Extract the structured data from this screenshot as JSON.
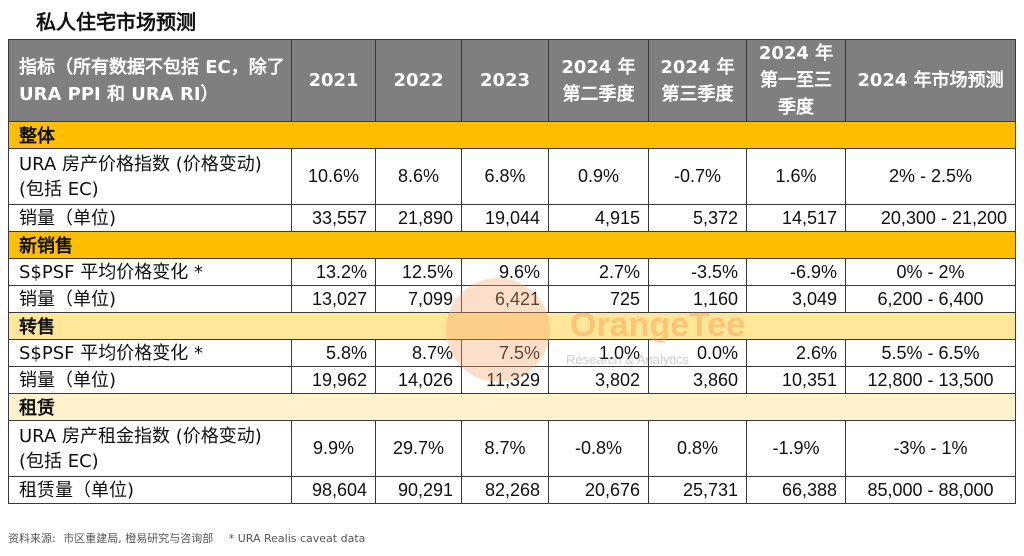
{
  "title": "私人住宅市场预测",
  "header": {
    "indicator": "指标（所有数据不包括 EC，除了 URA PPI 和 URA RI）",
    "columns": [
      "2021",
      "2022",
      "2023",
      "2024 年第二季度",
      "2024 年第三季度",
      "2024 年第一至三季度",
      "2024 年市场预测"
    ]
  },
  "sections": [
    {
      "name": "整体",
      "rows": [
        {
          "label": "URA 房产价格指数 (价格变动) (包括 EC)",
          "values": [
            "10.6%",
            "8.6%",
            "6.8%",
            "0.9%",
            "-0.7%",
            "1.6%",
            "2% - 2.5%"
          ]
        },
        {
          "label": "销量（单位)",
          "values": [
            "33,557",
            "21,890",
            "19,044",
            "4,915",
            "5,372",
            "14,517",
            "20,300 - 21,200"
          ]
        }
      ]
    },
    {
      "name": "新销售",
      "rows": [
        {
          "label": "S$PSF 平均价格变化 *",
          "values": [
            "13.2%",
            "12.5%",
            "9.6%",
            "2.7%",
            "-3.5%",
            "-6.9%",
            "0% - 2%"
          ]
        },
        {
          "label": "销量（单位)",
          "values": [
            "13,027",
            "7,099",
            "6,421",
            "725",
            "1,160",
            "3,049",
            "6,200 - 6,400"
          ]
        }
      ]
    },
    {
      "name": "转售",
      "rows": [
        {
          "label": "S$PSF 平均价格变化 *",
          "values": [
            "5.8%",
            "8.7%",
            "7.5%",
            "1.0%",
            "0.0%",
            "2.6%",
            "5.5% - 6.5%"
          ]
        },
        {
          "label": "销量（单位)",
          "values": [
            "19,962",
            "14,026",
            "11,329",
            "3,802",
            "3,860",
            "10,351",
            "12,800 - 13,500"
          ]
        }
      ]
    },
    {
      "name": "租赁",
      "rows": [
        {
          "label": "URA 房产租金指数 (价格变动) (包括 EC)",
          "values": [
            "9.9%",
            "29.7%",
            "8.7%",
            "-0.8%",
            "0.8%",
            "-1.9%",
            "-3% - 1%"
          ]
        },
        {
          "label": "租赁量（单位)",
          "values": [
            "98,604",
            "90,291",
            "82,268",
            "20,676",
            "25,731",
            "66,388",
            "85,000 - 88,000"
          ]
        }
      ]
    }
  ],
  "footer": {
    "source_label": "资料来源:",
    "source": "市区重建局, 橙易研究与咨询部",
    "note": "* URA Realis caveat data"
  },
  "watermark": {
    "brand": "OrangeTee",
    "sub": "Research & Analytics"
  },
  "colors": {
    "header_bg": "#7f7f7f",
    "section_bg": "#ffbf00",
    "section_alt_bg": "#ffe699",
    "section_light_bg": "#fff2cc",
    "brand_orange": "#f28a3e"
  }
}
